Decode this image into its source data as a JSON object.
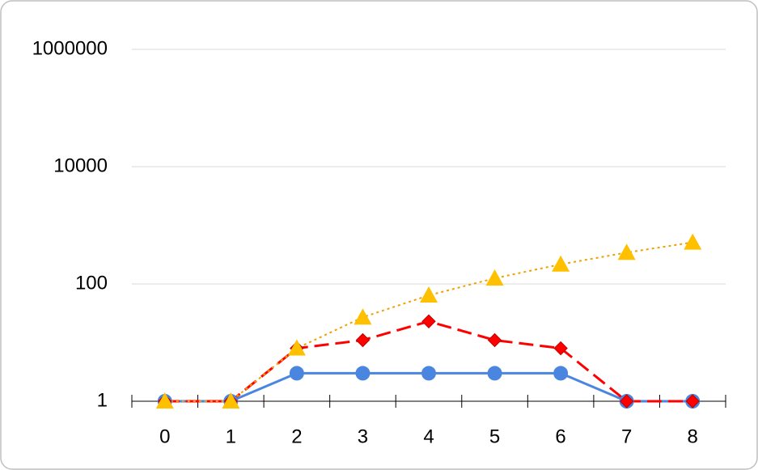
{
  "chart_data": {
    "type": "line",
    "categories": [
      "0",
      "1",
      "2",
      "3",
      "4",
      "5",
      "6",
      "7",
      "8"
    ],
    "log_scale": true,
    "grid": true,
    "ylim": [
      1,
      1000000
    ],
    "yticks": [
      1,
      100,
      10000,
      1000000
    ],
    "series": [
      {
        "color": "#4a86e0",
        "line_style": "solid",
        "marker": "circle",
        "values": [
          1,
          1,
          3,
          3,
          3,
          3,
          3,
          1,
          1
        ]
      },
      {
        "color": "#ff0000",
        "line_style": "dashed",
        "marker": "diamond",
        "values": [
          1,
          1,
          8,
          11,
          23,
          11,
          8,
          1,
          1
        ]
      },
      {
        "color": "#ffc000",
        "line_color": "#f0a000",
        "line_style": "dotted",
        "marker": "triangle",
        "values": [
          1,
          1,
          8,
          27,
          64,
          125,
          216,
          343,
          512
        ]
      }
    ]
  }
}
